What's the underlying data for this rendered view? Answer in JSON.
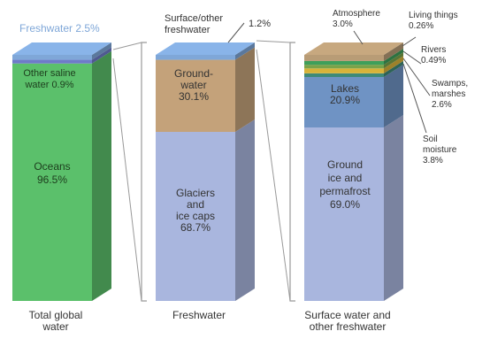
{
  "chart_data": {
    "type": "bar",
    "stacked": true,
    "style": "3d-stacked-columns",
    "grid": false,
    "legend": "none",
    "colors": {
      "ocean": "#5BC06B",
      "saline": "#6E7BC8",
      "freshwater_cap": "#7FA7D8",
      "groundwater": "#C4A27A",
      "glaciers": "#A9B6DE",
      "atmosphere": "#B89C76",
      "living": "#3F9F5A",
      "rivers": "#7AA34A",
      "swamps": "#D8B33A",
      "lakes": "#6F93C4",
      "ground_ice": "#A9B6DE",
      "bracket": "#999999",
      "text": "#333333"
    },
    "columns": [
      {
        "label_lines": [
          "Total global",
          "water"
        ],
        "segments": [
          {
            "key": "oceans",
            "label_lines": [
              "Oceans",
              "96.5%"
            ],
            "value": 96.5,
            "color": "#5BC06B",
            "text_color": "#1d3d1d"
          },
          {
            "key": "saline",
            "label_lines": [
              "Other saline",
              "water 0.9%"
            ],
            "value": 0.9,
            "color": "#6E7BC8",
            "text_color": "#1d3d1d"
          },
          {
            "key": "freshwater",
            "label_lines": [
              "Freshwater 2.5%"
            ],
            "value": 2.5,
            "color": "#7FA7D8",
            "text_color": "#7FA7D8"
          }
        ]
      },
      {
        "label_lines": [
          "Freshwater"
        ],
        "segments": [
          {
            "key": "glaciers",
            "label_lines": [
              "Glaciers",
              "and",
              "ice caps",
              "68.7%"
            ],
            "value": 68.7,
            "color": "#A9B6DE",
            "text_color": "#333333"
          },
          {
            "key": "groundwater",
            "label_lines": [
              "Ground-",
              "water",
              "30.1%"
            ],
            "value": 30.1,
            "color": "#C4A27A",
            "text_color": "#333333"
          },
          {
            "key": "surface",
            "label_lines": [
              "Surface/other",
              "freshwater",
              "1.2%"
            ],
            "value": 1.2,
            "color": "#7FA7D8",
            "text_color": "#333333"
          }
        ]
      },
      {
        "label_lines": [
          "Surface water and",
          "other freshwater"
        ],
        "segments": [
          {
            "key": "ground_ice",
            "label_lines": [
              "Ground",
              "ice and",
              "permafrost",
              "69.0%"
            ],
            "value": 69.0,
            "color": "#A9B6DE",
            "text_color": "#333333"
          },
          {
            "key": "lakes",
            "label_lines": [
              "Lakes",
              "20.9%"
            ],
            "value": 20.9,
            "color": "#6F93C4",
            "text_color": "#333333"
          },
          {
            "key": "soil",
            "label_lines": [
              "Soil",
              "moisture",
              "3.8%"
            ],
            "value": 3.8,
            "color": "#3F8A78",
            "text_color": "#333333"
          },
          {
            "key": "swamps",
            "label_lines": [
              "Swamps,",
              "marshes",
              "2.6%"
            ],
            "value": 2.6,
            "color": "#D8B33A",
            "text_color": "#333333"
          },
          {
            "key": "rivers",
            "label_lines": [
              "Rivers",
              "0.49%"
            ],
            "value": 0.49,
            "color": "#7AA34A",
            "text_color": "#333333"
          },
          {
            "key": "living",
            "label_lines": [
              "Living things",
              "0.26%"
            ],
            "value": 0.26,
            "color": "#3F9F5A",
            "text_color": "#333333"
          },
          {
            "key": "atmosphere",
            "label_lines": [
              "Atmosphere",
              "3.0%"
            ],
            "value": 3.0,
            "color": "#B89C76",
            "text_color": "#333333"
          }
        ]
      }
    ]
  }
}
